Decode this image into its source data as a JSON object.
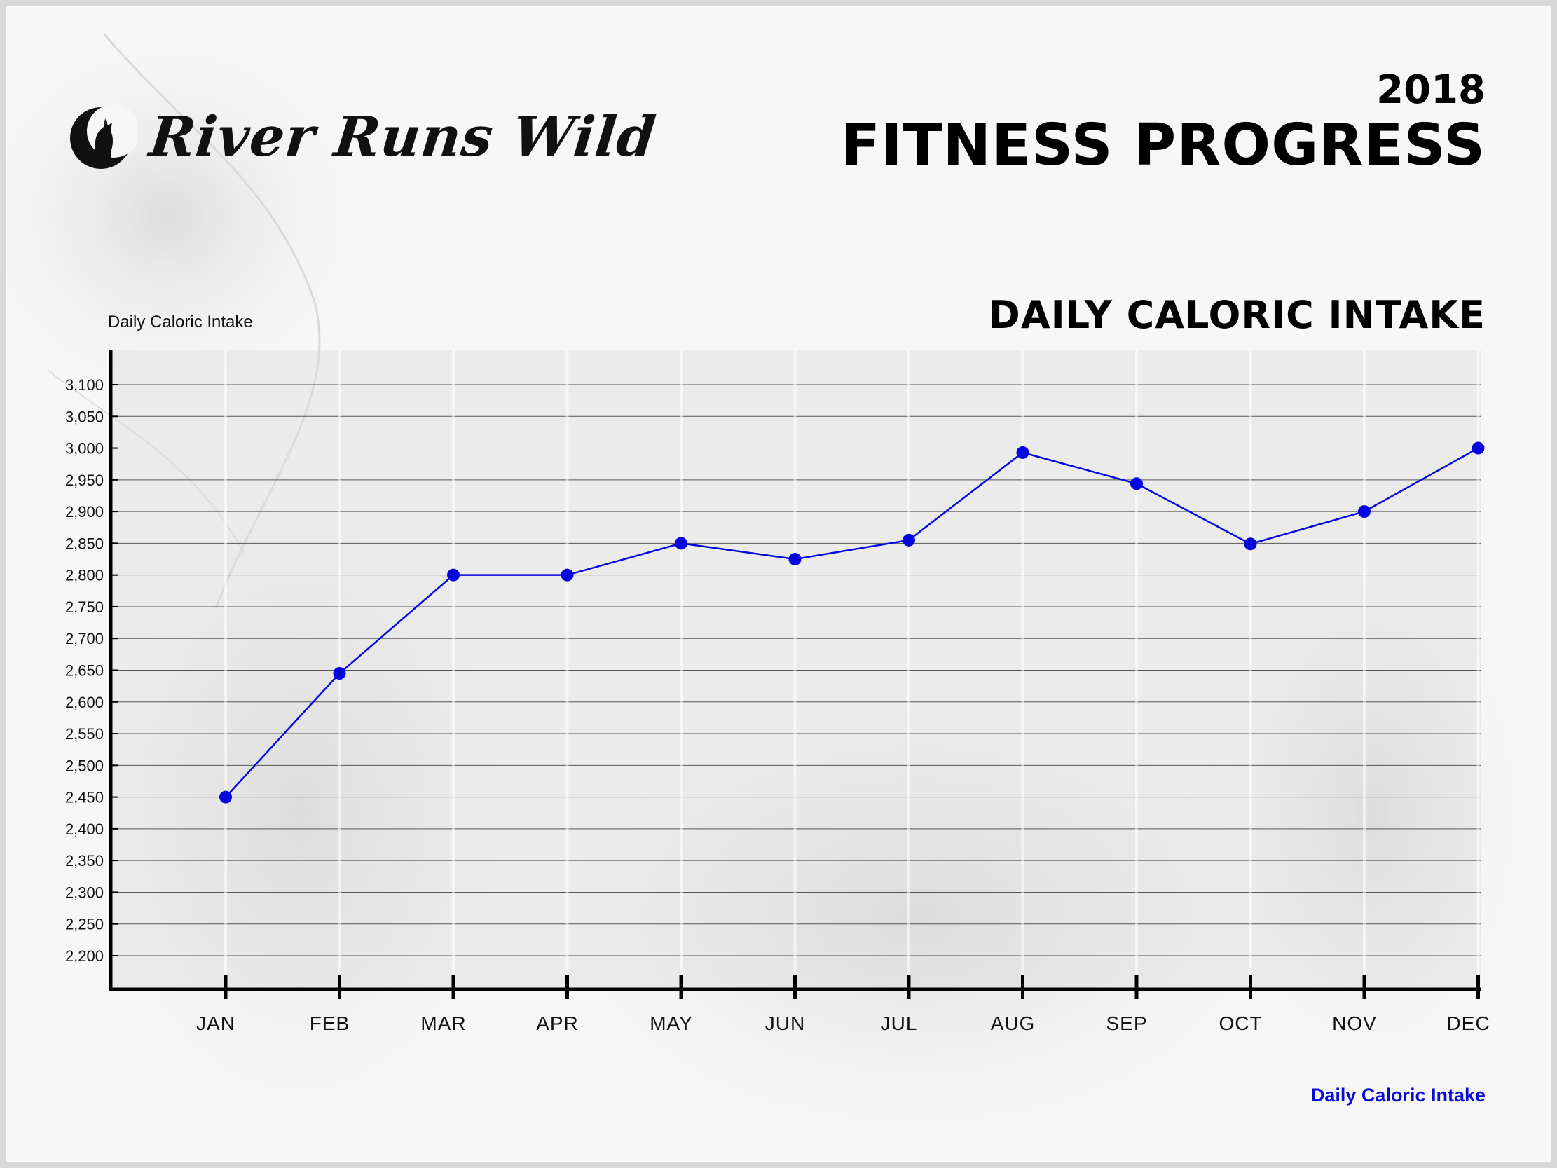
{
  "header": {
    "brand_name": "River Runs Wild",
    "year": "2018",
    "title": "FITNESS PROGRESS"
  },
  "colors": {
    "accent": "#0505e0",
    "axis": "#000000",
    "grid": "#555555"
  },
  "chart_data": {
    "type": "line",
    "title": "DAILY CALORIC INTAKE",
    "ylabel": "Daily Caloric Intake",
    "xlabel": "",
    "categories": [
      "JAN",
      "FEB",
      "MAR",
      "APR",
      "MAY",
      "JUN",
      "JUL",
      "AUG",
      "SEP",
      "OCT",
      "NOV",
      "DEC"
    ],
    "series": [
      {
        "name": "Daily Caloric Intake",
        "values": [
          2450,
          2645,
          2800,
          2800,
          2850,
          2825,
          2855,
          2993,
          2944,
          2849,
          2900,
          3000
        ]
      }
    ],
    "yticks": [
      3100,
      3050,
      3000,
      2950,
      2900,
      2850,
      2800,
      2750,
      2700,
      2650,
      2600,
      2550,
      2500,
      2450,
      2400,
      2350,
      2300,
      2250,
      2200
    ],
    "ylim": [
      2150,
      3150
    ],
    "grid": true,
    "legend_position": "bottom-right"
  }
}
